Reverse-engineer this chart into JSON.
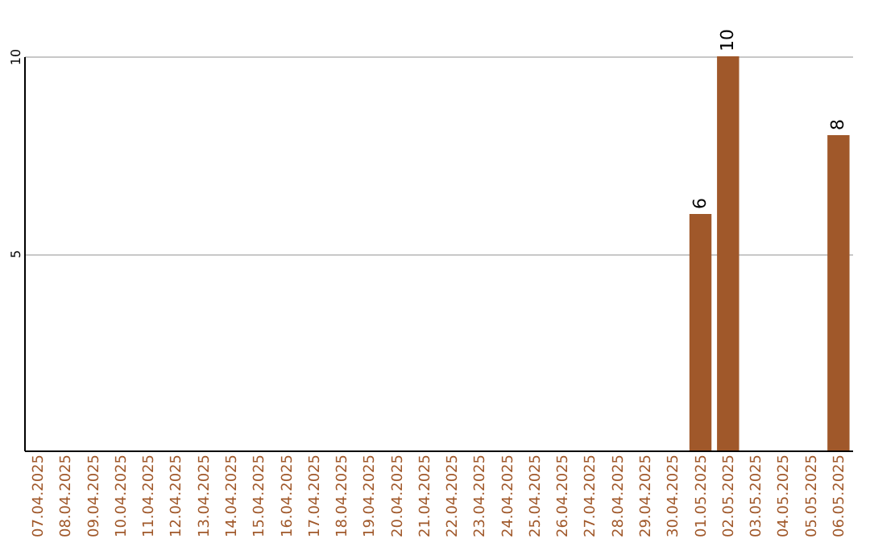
{
  "chart_data": {
    "type": "bar",
    "categories": [
      "07.04.2025",
      "08.04.2025",
      "09.04.2025",
      "10.04.2025",
      "11.04.2025",
      "12.04.2025",
      "13.04.2025",
      "14.04.2025",
      "15.04.2025",
      "16.04.2025",
      "17.04.2025",
      "18.04.2025",
      "19.04.2025",
      "20.04.2025",
      "21.04.2025",
      "22.04.2025",
      "23.04.2025",
      "24.04.2025",
      "25.04.2025",
      "26.04.2025",
      "27.04.2025",
      "28.04.2025",
      "29.04.2025",
      "30.04.2025",
      "01.05.2025",
      "02.05.2025",
      "03.05.2025",
      "04.05.2025",
      "05.05.2025",
      "06.05.2025"
    ],
    "values": [
      0,
      0,
      0,
      0,
      0,
      0,
      0,
      0,
      0,
      0,
      0,
      0,
      0,
      0,
      0,
      0,
      0,
      0,
      0,
      0,
      0,
      0,
      0,
      0,
      6,
      10,
      0,
      0,
      0,
      8
    ],
    "value_labels": [
      null,
      null,
      null,
      null,
      null,
      null,
      null,
      null,
      null,
      null,
      null,
      null,
      null,
      null,
      null,
      null,
      null,
      null,
      null,
      null,
      null,
      null,
      null,
      null,
      "6",
      "10",
      null,
      null,
      null,
      "8"
    ],
    "color": "#a0582a",
    "ylim": [
      0,
      10
    ],
    "yticks": [
      5,
      10
    ],
    "grid": "y"
  }
}
